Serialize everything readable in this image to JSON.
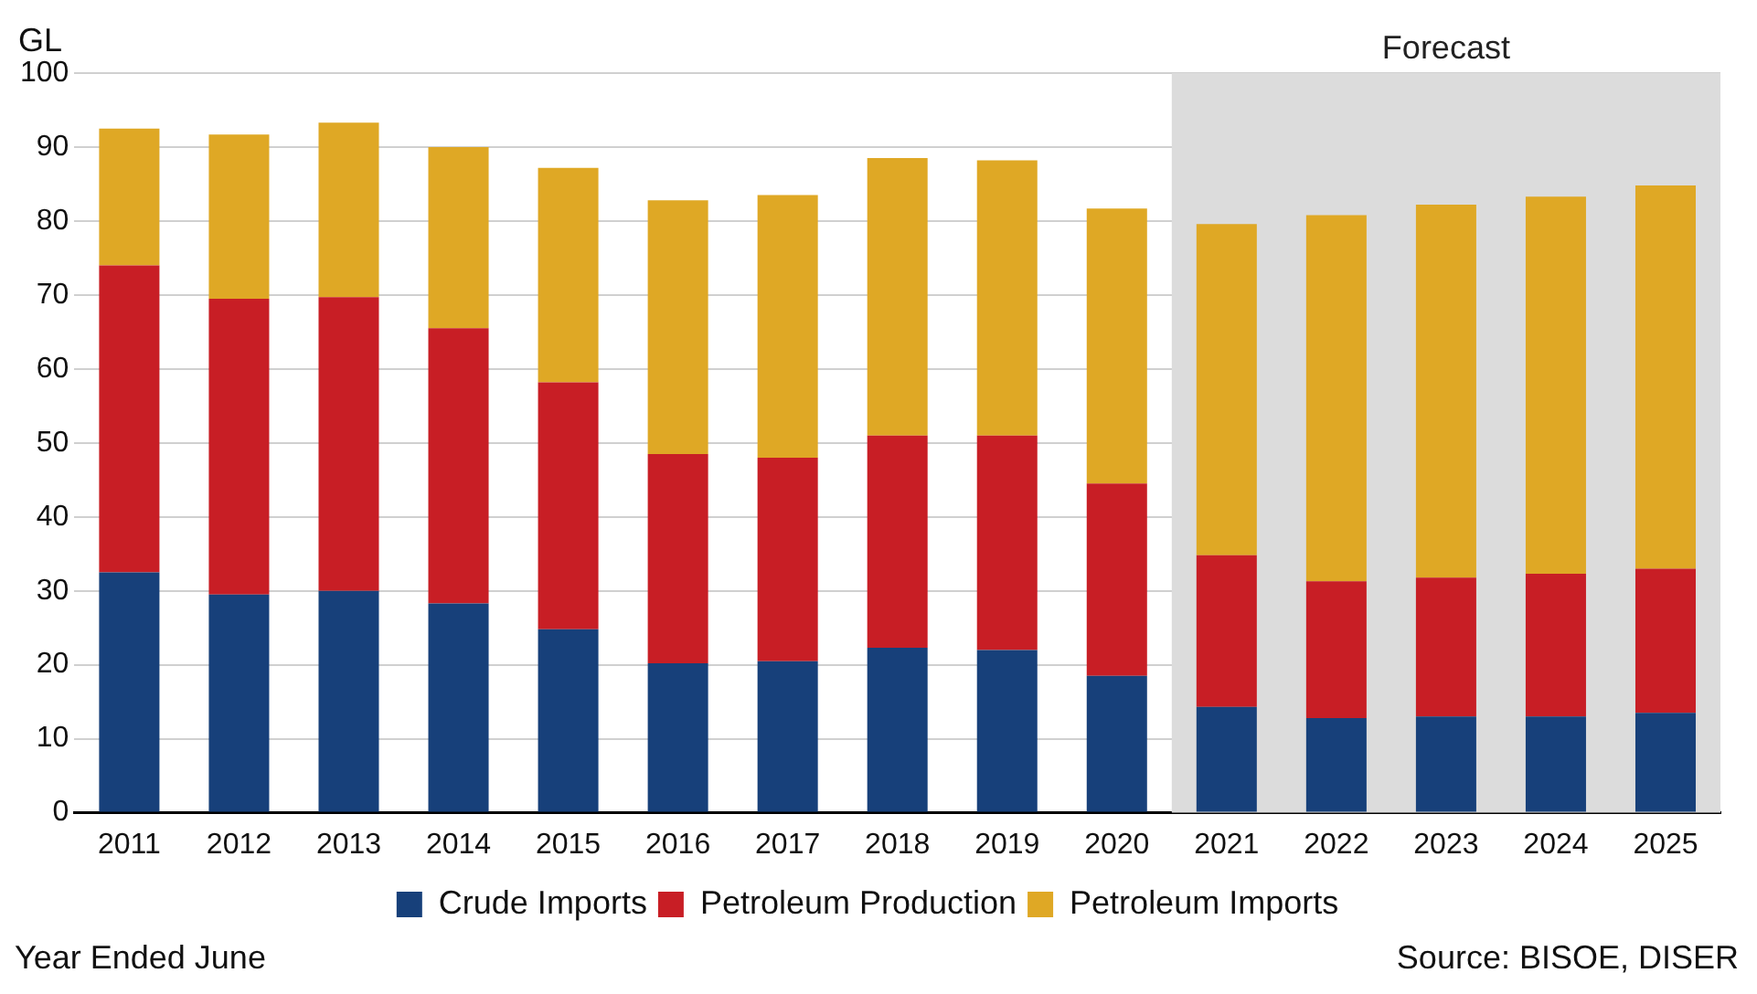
{
  "chart_data": {
    "type": "bar",
    "stacked": true,
    "ylabel": "GL",
    "xlabel": "Year Ended June",
    "categories": [
      "2011",
      "2012",
      "2013",
      "2014",
      "2015",
      "2016",
      "2017",
      "2018",
      "2019",
      "2020",
      "2021",
      "2022",
      "2023",
      "2024",
      "2025"
    ],
    "series": [
      {
        "name": "Crude Imports",
        "color": "#17407a",
        "values": [
          32.5,
          29.5,
          30,
          28.3,
          24.8,
          20.2,
          20.5,
          22.3,
          22,
          18.5,
          14.3,
          12.8,
          13,
          13,
          13.5
        ]
      },
      {
        "name": "Petroleum Production",
        "color": "#c81e25",
        "values": [
          41.5,
          40,
          39.7,
          37.2,
          33.4,
          28.3,
          27.5,
          28.7,
          29,
          26,
          20.5,
          18.5,
          18.8,
          19.3,
          19.5
        ]
      },
      {
        "name": "Petroleum Imports",
        "color": "#dfa825",
        "values": [
          18.5,
          22.2,
          23.6,
          24.5,
          29,
          34.3,
          35.5,
          37.5,
          37.2,
          37.2,
          44.8,
          49.5,
          50.4,
          51,
          51.8
        ]
      }
    ],
    "ylim": [
      0,
      100
    ],
    "yticks": [
      0,
      10,
      20,
      30,
      40,
      50,
      60,
      70,
      80,
      90,
      100
    ],
    "grid": "y",
    "legend": "bottom",
    "bands": [
      {
        "axis": "x",
        "from": "2021",
        "to": "2025",
        "label": "Forecast",
        "color": "#dcdcdc"
      }
    ],
    "annotations": [
      "Source: BISOE, DISER"
    ]
  }
}
